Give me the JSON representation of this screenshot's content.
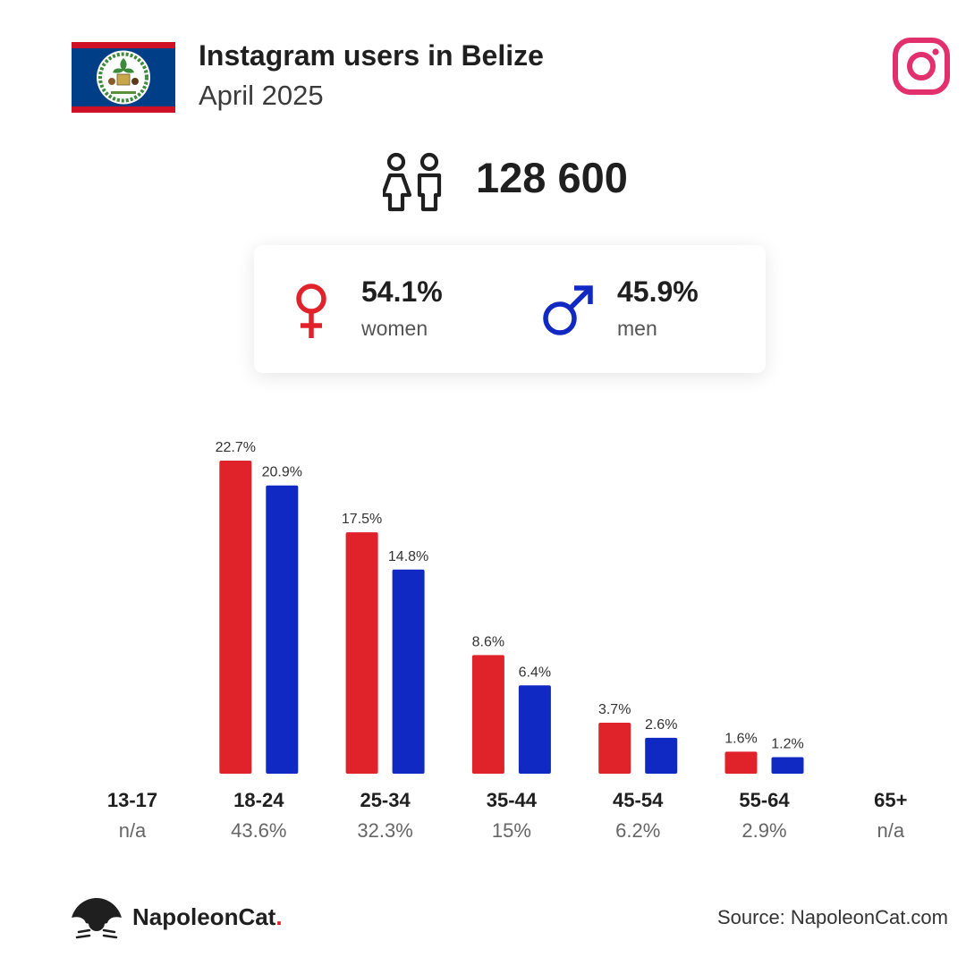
{
  "header": {
    "title": "Instagram users in Belize",
    "subtitle": "April 2025"
  },
  "summary": {
    "total_users": "128 600"
  },
  "gender": {
    "women": {
      "pct": "54.1%",
      "label": "women"
    },
    "men": {
      "pct": "45.9%",
      "label": "men"
    }
  },
  "colors": {
    "women": "#e0222a",
    "men": "#1029c2",
    "instagram": "#e1306c",
    "flag_blue": "#003f87",
    "flag_red": "#ce1126"
  },
  "icons": {
    "flag": "belize-flag-icon",
    "instagram": "instagram-icon",
    "users": "users-icon",
    "female": "female-icon",
    "male": "male-icon",
    "brand": "napoleoncat-logo-icon"
  },
  "chart_data": {
    "type": "bar",
    "categories": [
      "13-17",
      "18-24",
      "25-34",
      "35-44",
      "45-54",
      "55-64",
      "65+"
    ],
    "series": [
      {
        "values": [
          null,
          22.7,
          17.5,
          8.6,
          3.7,
          1.6,
          null
        ]
      },
      {
        "values": [
          null,
          20.9,
          14.8,
          6.4,
          2.6,
          1.2,
          null
        ]
      }
    ],
    "value_labels": [
      [
        "",
        "22.7%",
        "17.5%",
        "8.6%",
        "3.7%",
        "1.6%",
        ""
      ],
      [
        "",
        "20.9%",
        "14.8%",
        "6.4%",
        "2.6%",
        "1.2%",
        ""
      ]
    ],
    "category_totals": [
      "n/a",
      "43.6%",
      "32.3%",
      "15%",
      "6.2%",
      "2.9%",
      "n/a"
    ],
    "ylim": [
      0,
      25
    ],
    "grid": false,
    "legend": "none"
  },
  "footer": {
    "brand_name": "NapoleonCat",
    "brand_dot": ".",
    "source": "Source: NapoleonCat.com"
  }
}
